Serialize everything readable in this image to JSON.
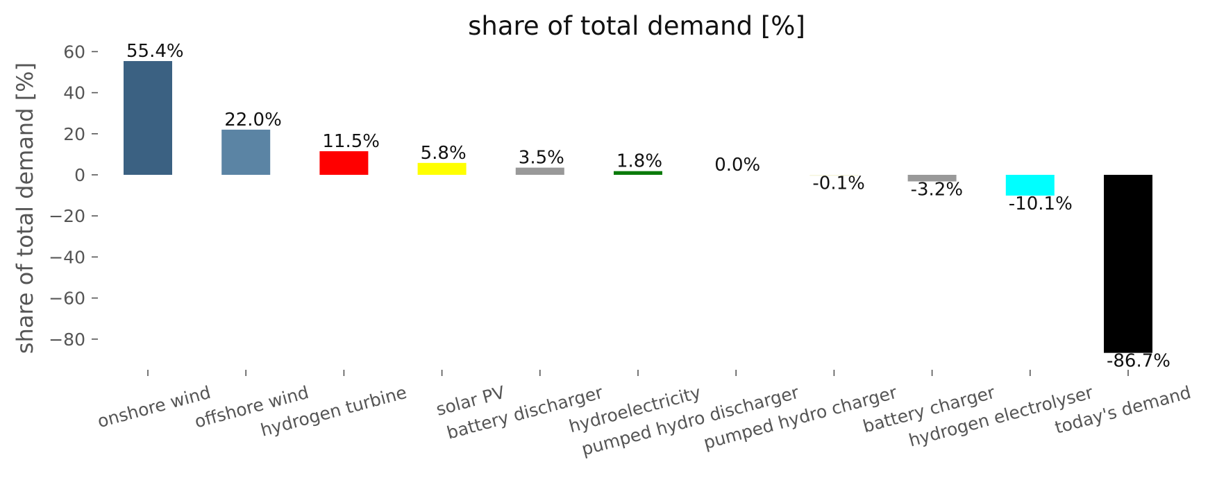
{
  "chart_data": {
    "type": "bar",
    "title": "share of total demand [%]",
    "xlabel": "",
    "ylabel": "share of total demand [%]",
    "categories": [
      "onshore wind",
      "offshore wind",
      "hydrogen turbine",
      "solar PV",
      "battery discharger",
      "hydroelectricity",
      "pumped hydro discharger",
      "pumped hydro charger",
      "battery charger",
      "hydrogen electrolyser",
      "today's demand"
    ],
    "values": [
      55.4,
      22.0,
      11.5,
      5.8,
      3.5,
      1.8,
      0.0,
      -0.1,
      -3.2,
      -10.1,
      -86.7
    ],
    "value_labels": [
      "55.4%",
      "22.0%",
      "11.5%",
      "5.8%",
      "3.5%",
      "1.8%",
      "0.0%",
      "-0.1%",
      "-3.2%",
      "-10.1%",
      "-86.7%"
    ],
    "colors": [
      "#3b6182",
      "#5b84a4",
      "#ff0000",
      "#ffff00",
      "#999999",
      "#0a7a0a",
      "#51dbcc",
      "#f5f5dc",
      "#999999",
      "#00ffff",
      "#000000"
    ],
    "yticks": [
      60,
      40,
      20,
      0,
      -20,
      -40,
      -60,
      -80
    ],
    "ytick_labels": [
      "60",
      "40",
      "20",
      "0",
      "−20",
      "−40",
      "−60",
      "−80"
    ],
    "ylim": [
      -95,
      62
    ],
    "grid": false
  }
}
